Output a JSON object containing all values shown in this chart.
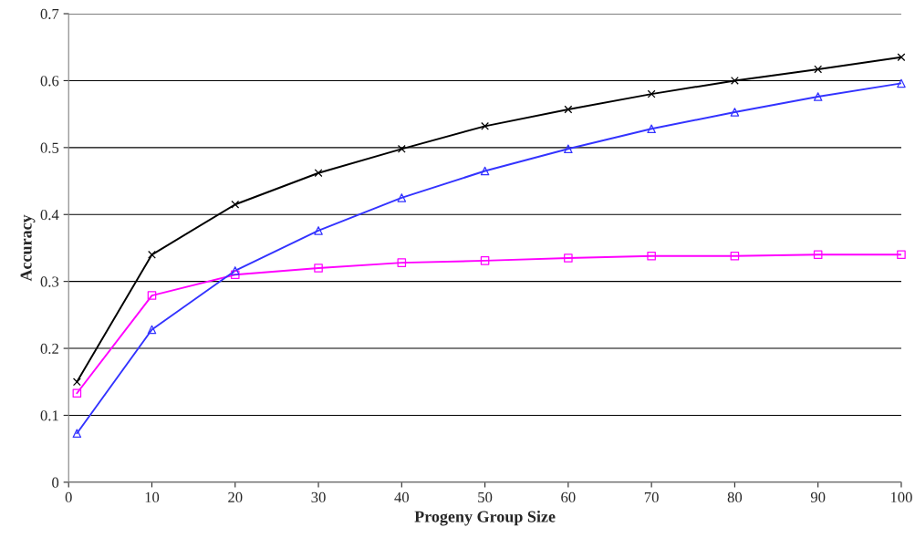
{
  "chart_data": {
    "type": "line",
    "xlabel": "Progeny Group Size",
    "ylabel": "Accuracy",
    "x": [
      1,
      10,
      20,
      30,
      40,
      50,
      60,
      70,
      80,
      90,
      100
    ],
    "series": [
      {
        "color": "#000000",
        "marker": "cross",
        "values": [
          0.15,
          0.34,
          0.415,
          0.462,
          0.498,
          0.532,
          0.557,
          0.58,
          0.6,
          0.617,
          0.635
        ]
      },
      {
        "color": "#ff00ff",
        "marker": "square",
        "values": [
          0.133,
          0.279,
          0.31,
          0.32,
          0.328,
          0.331,
          0.335,
          0.338,
          0.338,
          0.34,
          0.34
        ]
      },
      {
        "color": "#3333ff",
        "marker": "triangle",
        "values": [
          0.073,
          0.228,
          0.316,
          0.376,
          0.425,
          0.465,
          0.498,
          0.528,
          0.553,
          0.576,
          0.596
        ]
      }
    ],
    "xlim": [
      0,
      100
    ],
    "xticks": [
      0,
      10,
      20,
      30,
      40,
      50,
      60,
      70,
      80,
      90,
      100
    ],
    "ylim": [
      0,
      0.7
    ],
    "yticks": [
      0,
      0.1,
      0.2,
      0.3,
      0.4,
      0.5,
      0.6,
      0.7
    ],
    "grid": "y",
    "line_style": "solid"
  }
}
